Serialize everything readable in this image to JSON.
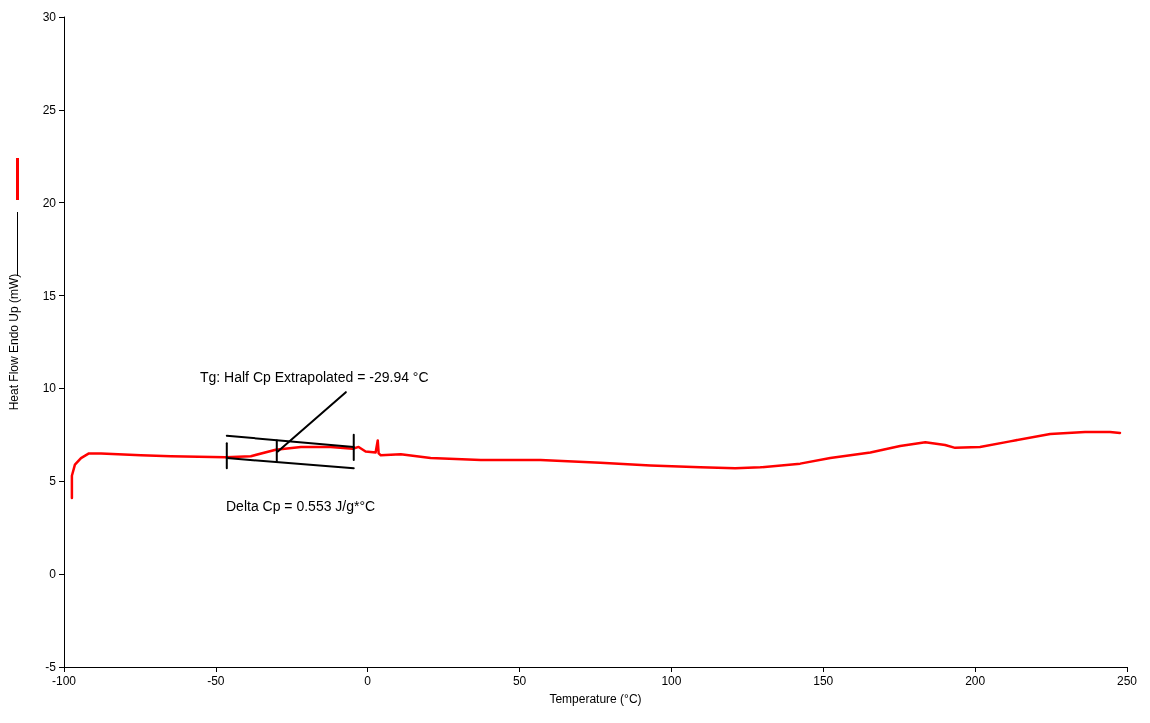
{
  "chart_data": {
    "type": "line",
    "xlabel": "Temperature (°C)",
    "ylabel": "Heat Flow Endo Up (mW)",
    "xlim": [
      -100,
      250
    ],
    "xticks": [
      -100,
      -50,
      0,
      50,
      100,
      150,
      200,
      250
    ],
    "ylim": [
      -5,
      30
    ],
    "yticks": [
      -5,
      0,
      5,
      10,
      15,
      20,
      25,
      30
    ],
    "grid": false,
    "marker": "none",
    "line_style": "solid",
    "annotations": [
      "Tg: Half Cp Extrapolated = -29.94 °C",
      "Delta Cp = 0.553 J/g*°C"
    ],
    "series": [
      {
        "color": "#ff0000",
        "x": [
          -97.4,
          -97.4,
          -96.4,
          -94.4,
          -91.8,
          -87.8,
          -74.7,
          -64.8,
          -46.7,
          -38.5,
          -30.3,
          -22,
          -12.2,
          -4.9,
          -3,
          -0.7,
          2.6,
          3.3,
          3.6,
          4.3,
          10.9,
          20.7,
          37.2,
          56.9,
          76.6,
          93.1,
          109.5,
          121,
          129.3,
          142.4,
          152.3,
          165.5,
          175.3,
          183.6,
          190.1,
          193.4,
          201.6,
          211.5,
          224.7,
          236.2,
          244.4,
          247.7
        ],
        "values": [
          4.1,
          5.3,
          5.9,
          6.25,
          6.5,
          6.5,
          6.4,
          6.35,
          6.3,
          6.35,
          6.7,
          6.85,
          6.85,
          6.75,
          6.85,
          6.6,
          6.55,
          7.2,
          6.5,
          6.4,
          6.45,
          6.25,
          6.15,
          6.15,
          6.0,
          5.85,
          5.75,
          5.7,
          5.75,
          5.95,
          6.25,
          6.55,
          6.9,
          7.1,
          6.95,
          6.8,
          6.85,
          7.15,
          7.55,
          7.65,
          7.65,
          7.6
        ]
      },
      {
        "color": "#000000",
        "x": [
          -46.4,
          -4.6
        ],
        "values": [
          7.45,
          6.85
        ]
      },
      {
        "color": "#000000",
        "x": [
          -46.4,
          -4.6
        ],
        "values": [
          6.25,
          5.7
        ]
      },
      {
        "color": "#000000",
        "x": [
          -29.6,
          -7.2
        ],
        "values": [
          6.6,
          9.8
        ]
      },
      {
        "color": "#000000",
        "x": [
          -46.4,
          -46.4
        ],
        "values": [
          7.05,
          5.7
        ]
      },
      {
        "color": "#000000",
        "x": [
          -29.94,
          -29.94
        ],
        "values": [
          7.2,
          6.05
        ]
      },
      {
        "color": "#000000",
        "x": [
          -4.6,
          -4.6
        ],
        "values": [
          7.5,
          6.15
        ]
      }
    ]
  }
}
